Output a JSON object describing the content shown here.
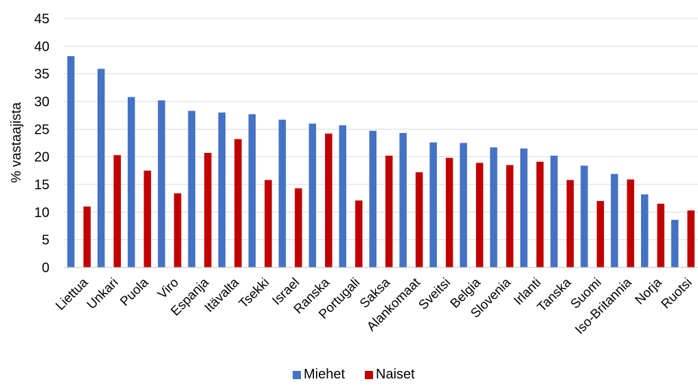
{
  "chart_data": {
    "type": "bar",
    "categories": [
      "Liettua",
      "Unkari",
      "Puola",
      "Viro",
      "Espanja",
      "Itävalta",
      "Tsekki",
      "Israel",
      "Ranska",
      "Portugali",
      "Saksa",
      "Alankomaat",
      "Sveitsi",
      "Belgia",
      "Slovenia",
      "Irlanti",
      "Tanska",
      "Suomi",
      "Iso-Britannia",
      "Norja",
      "Ruotsi"
    ],
    "series": [
      {
        "name": "Miehet",
        "color": "#4472C4",
        "values": [
          38.2,
          35.9,
          30.8,
          30.2,
          28.3,
          28.0,
          27.7,
          26.7,
          26.0,
          25.7,
          24.7,
          24.3,
          22.6,
          22.5,
          21.7,
          21.5,
          20.2,
          18.4,
          16.9,
          13.2,
          8.6
        ]
      },
      {
        "name": "Naiset",
        "color": "#C00000",
        "values": [
          11.0,
          20.3,
          17.5,
          13.4,
          20.7,
          23.2,
          15.8,
          14.3,
          24.2,
          12.1,
          20.2,
          17.2,
          19.8,
          18.9,
          18.5,
          19.1,
          15.8,
          12.0,
          15.9,
          11.5,
          10.3
        ]
      }
    ],
    "title": "",
    "xlabel": "",
    "ylabel": "% vastaajista",
    "ylim": [
      0,
      45
    ],
    "yticks": [
      "0",
      "5",
      "10",
      "15",
      "20",
      "25",
      "30",
      "35",
      "40",
      "45"
    ],
    "grid": true,
    "legend": "bottom"
  }
}
